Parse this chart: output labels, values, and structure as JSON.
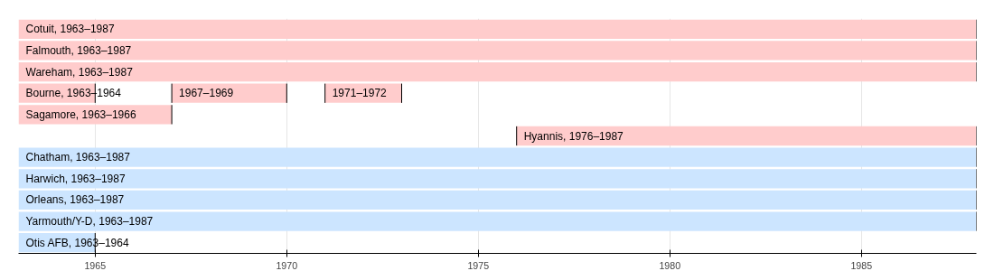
{
  "chart_data": {
    "type": "bar",
    "orientation": "horizontal",
    "categories": [
      null,
      null,
      null,
      null,
      null,
      null,
      null,
      null,
      null,
      null,
      null
    ],
    "xlim": [
      1963,
      1988
    ],
    "xticks": [
      1965,
      1970,
      1975,
      1980,
      1985
    ],
    "grid": "x",
    "series": [
      {
        "base": [
          1963,
          1963,
          1963,
          1963,
          1963,
          1976,
          1963,
          1963,
          1963,
          1963,
          1963
        ],
        "values": [
          25,
          25,
          25,
          2,
          4,
          12,
          25,
          25,
          25,
          25,
          2
        ],
        "colors": [
          "#ffcccc",
          "#ffcccc",
          "#ffcccc",
          "#ffcccc",
          "#ffcccc",
          "#ffcccc",
          "#cce5ff",
          "#cce5ff",
          "#cce5ff",
          "#cce5ff",
          "#cce5ff"
        ],
        "value_labels": [
          "Cotuit, 1963–1987",
          "Falmouth, 1963–1987",
          "Wareham, 1963–1987",
          "Bourne, 1963–1964",
          "Sagamore, 1963–1966",
          "Hyannis, 1976–1987",
          "Chatham, 1963–1987",
          "Harwich, 1963–1987",
          "Orleans, 1963–1987",
          "Yarmouth/Y-D, 1963–1987",
          "Otis AFB, 1963–1964"
        ]
      },
      {
        "base": [
          null,
          null,
          null,
          1967,
          null,
          null,
          null,
          null,
          null,
          null,
          null
        ],
        "values": [
          null,
          null,
          null,
          3,
          null,
          null,
          null,
          null,
          null,
          null,
          null
        ],
        "colors": [
          null,
          null,
          null,
          "#ffcccc",
          null,
          null,
          null,
          null,
          null,
          null,
          null
        ],
        "value_labels": [
          null,
          null,
          null,
          "1967–1969",
          null,
          null,
          null,
          null,
          null,
          null,
          null
        ]
      },
      {
        "base": [
          null,
          null,
          null,
          1971,
          null,
          null,
          null,
          null,
          null,
          null,
          null
        ],
        "values": [
          null,
          null,
          null,
          2,
          null,
          null,
          null,
          null,
          null,
          null,
          null
        ],
        "colors": [
          null,
          null,
          null,
          "#ffcccc",
          null,
          null,
          null,
          null,
          null,
          null,
          null
        ],
        "value_labels": [
          null,
          null,
          null,
          "1971–1972",
          null,
          null,
          null,
          null,
          null,
          null,
          null
        ]
      }
    ]
  }
}
